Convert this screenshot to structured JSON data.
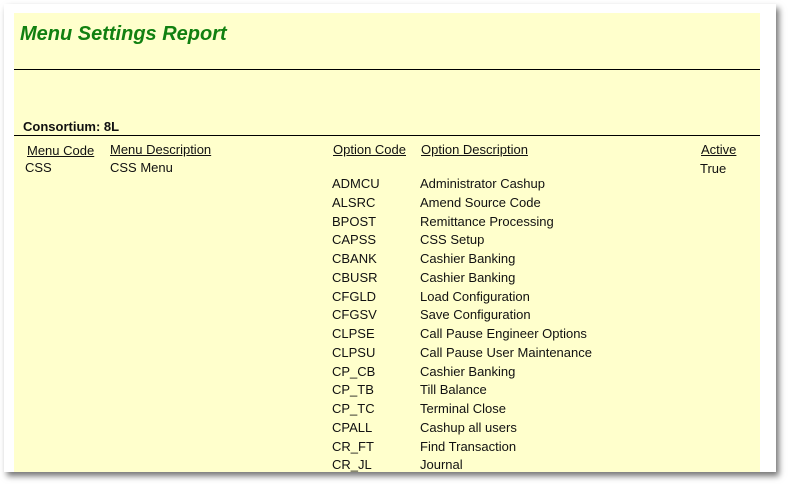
{
  "report": {
    "title": "Menu Settings Report",
    "consortium_label": "Consortium: 8L",
    "columns": {
      "menu_code": "Menu Code",
      "menu_description": "Menu Description",
      "option_code": "Option Code",
      "option_description": "Option Description",
      "active": "Active"
    },
    "menu": {
      "code": "CSS",
      "description": "CSS Menu",
      "active": "True"
    },
    "options": [
      {
        "code": "ADMCU",
        "description": "Administrator Cashup"
      },
      {
        "code": "ALSRC",
        "description": "Amend Source Code"
      },
      {
        "code": "BPOST",
        "description": "Remittance Processing"
      },
      {
        "code": "CAPSS",
        "description": "CSS Setup"
      },
      {
        "code": "CBANK",
        "description": "Cashier Banking"
      },
      {
        "code": "CBUSR",
        "description": "Cashier Banking"
      },
      {
        "code": "CFGLD",
        "description": "Load Configuration"
      },
      {
        "code": "CFGSV",
        "description": "Save Configuration"
      },
      {
        "code": "CLPSE",
        "description": "Call Pause Engineer Options"
      },
      {
        "code": "CLPSU",
        "description": "Call Pause User Maintenance"
      },
      {
        "code": "CP_CB",
        "description": "Cashier Banking"
      },
      {
        "code": "CP_TB",
        "description": "Till Balance"
      },
      {
        "code": "CP_TC",
        "description": "Terminal Close"
      },
      {
        "code": "CPALL",
        "description": "Cashup all users"
      },
      {
        "code": "CR_FT",
        "description": "Find Transaction"
      },
      {
        "code": "CR_JL",
        "description": "Journal"
      }
    ]
  }
}
